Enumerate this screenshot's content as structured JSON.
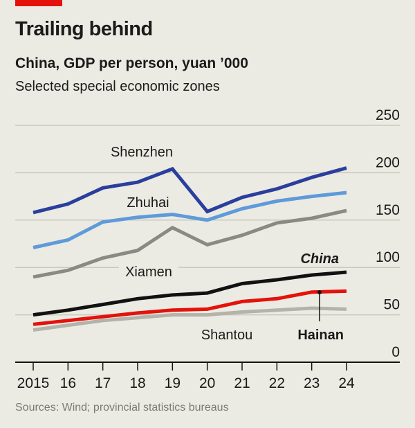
{
  "header": {
    "title": "Trailing behind",
    "subtitle": "China, GDP per person, yuan ’000",
    "description": "Selected special economic zones"
  },
  "footer": {
    "source": "Sources: Wind; provincial statistics bureaus"
  },
  "colors": {
    "background": "#ecebe3",
    "accent_bar": "#e3120b"
  },
  "chart_data": {
    "type": "line",
    "title": "Trailing behind",
    "subtitle": "China, GDP per person, yuan ’000",
    "x": [
      2015,
      2016,
      2017,
      2018,
      2019,
      2020,
      2021,
      2022,
      2023,
      2024
    ],
    "x_tick_labels": [
      "2015",
      "16",
      "17",
      "18",
      "19",
      "20",
      "21",
      "22",
      "23",
      "24"
    ],
    "ylim": [
      0,
      250
    ],
    "y_ticks": [
      0,
      50,
      100,
      150,
      200,
      250
    ],
    "y_tick_labels": [
      "0",
      "50",
      "100",
      "150",
      "200",
      "250"
    ],
    "y_axis_side": "right",
    "grid": true,
    "series": [
      {
        "name": "Shenzhen",
        "color": "#2a3f9d",
        "values": [
          158,
          167,
          184,
          190,
          204,
          159,
          174,
          183,
          195,
          205
        ]
      },
      {
        "name": "Zhuhai",
        "color": "#5f9ad9",
        "values": [
          121,
          129,
          148,
          153,
          156,
          150,
          162,
          170,
          175,
          179
        ]
      },
      {
        "name": "Xiamen",
        "color": "#8a8a80",
        "values": [
          90,
          97,
          110,
          118,
          142,
          124,
          134,
          147,
          152,
          160
        ]
      },
      {
        "name": "China",
        "color": "#111111",
        "values": [
          50,
          55,
          61,
          67,
          71,
          73,
          83,
          87,
          92,
          95
        ]
      },
      {
        "name": "Hainan",
        "color": "#e3120b",
        "values": [
          40,
          44,
          48,
          52,
          55,
          56,
          64,
          67,
          74,
          75
        ]
      },
      {
        "name": "Shantou",
        "color": "#b3b3aa",
        "values": [
          34,
          39,
          44,
          47,
          50,
          50,
          53,
          55,
          57,
          56
        ]
      }
    ]
  }
}
